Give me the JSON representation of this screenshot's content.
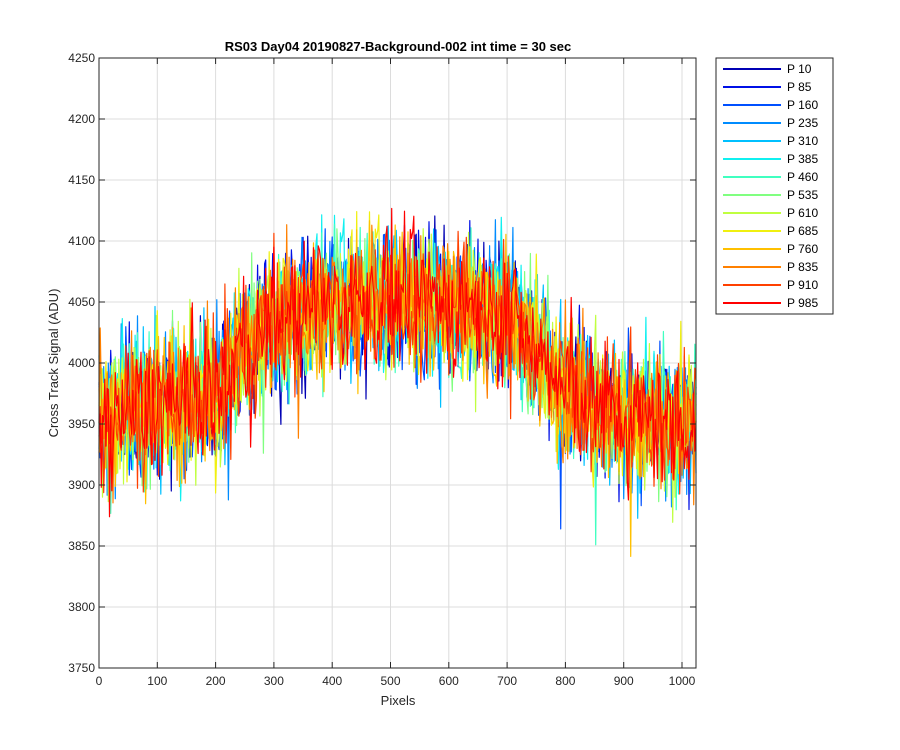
{
  "chart_data": {
    "type": "line",
    "title": "RS03 Day04 20190827-Background-002 int time = 30 sec",
    "xlabel": "Pixels",
    "ylabel": "Cross Track Signal (ADU)",
    "xlim": [
      0,
      1024
    ],
    "ylim": [
      3750,
      4250
    ],
    "xticks": [
      0,
      100,
      200,
      300,
      400,
      500,
      600,
      700,
      800,
      900,
      1000
    ],
    "yticks": [
      3750,
      3800,
      3850,
      3900,
      3950,
      4000,
      4050,
      4100,
      4150,
      4200,
      4250
    ],
    "grid": true,
    "legend_position": "outside-top-right",
    "profile": {
      "description_points_x": [
        0,
        100,
        200,
        250,
        300,
        400,
        500,
        600,
        700,
        750,
        800,
        900,
        1024
      ],
      "mean_y": [
        3955,
        3965,
        3975,
        4010,
        4035,
        4048,
        4052,
        4048,
        4040,
        4010,
        3975,
        3955,
        3950
      ],
      "noise_band": 50
    },
    "series": [
      {
        "name": "P 10",
        "color": "#0000b4"
      },
      {
        "name": "P 85",
        "color": "#0010e6"
      },
      {
        "name": "P 160",
        "color": "#0050ff"
      },
      {
        "name": "P 235",
        "color": "#008cff"
      },
      {
        "name": "P 310",
        "color": "#00c0ff"
      },
      {
        "name": "P 385",
        "color": "#10f0f0"
      },
      {
        "name": "P 460",
        "color": "#40ffc0"
      },
      {
        "name": "P 535",
        "color": "#80ff80"
      },
      {
        "name": "P 610",
        "color": "#c0ff40"
      },
      {
        "name": "P 685",
        "color": "#f0f010"
      },
      {
        "name": "P 760",
        "color": "#ffc000"
      },
      {
        "name": "P 835",
        "color": "#ff8000"
      },
      {
        "name": "P 910",
        "color": "#ff4000"
      },
      {
        "name": "P 985",
        "color": "#ff0000"
      }
    ]
  }
}
